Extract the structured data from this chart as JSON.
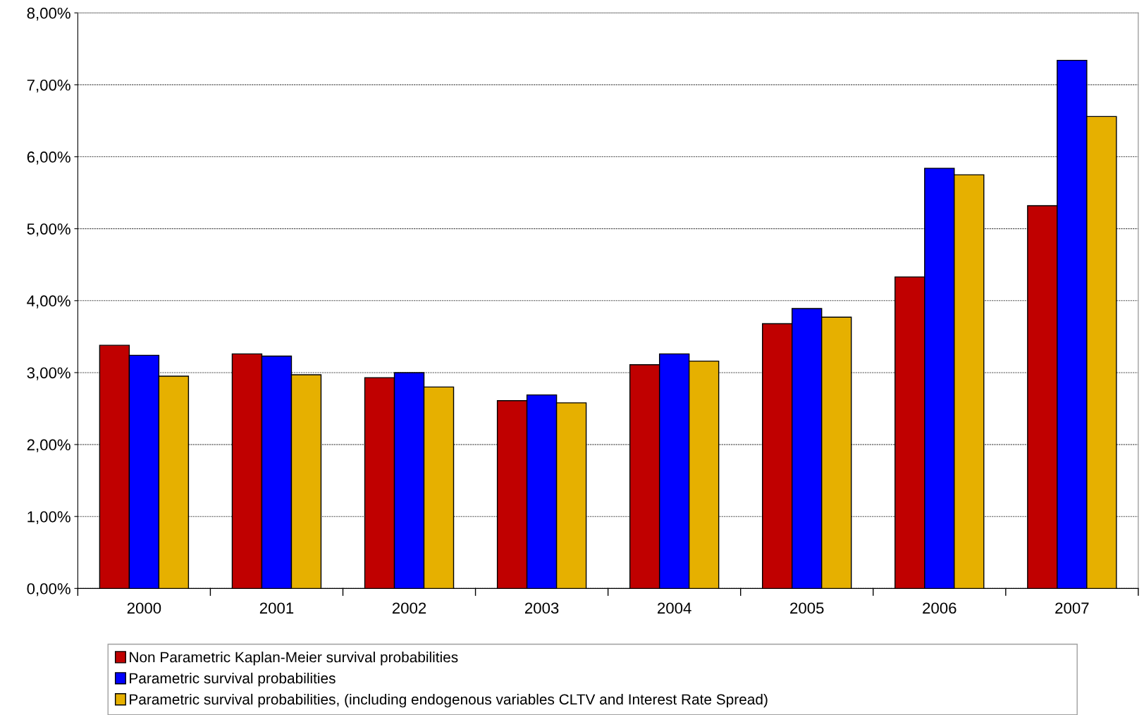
{
  "chart_data": {
    "type": "bar",
    "categories": [
      "2000",
      "2001",
      "2002",
      "2003",
      "2004",
      "2005",
      "2006",
      "2007"
    ],
    "series": [
      {
        "name": "Non Parametric Kaplan-Meier survival probabilities",
        "color": "#c00000",
        "values": [
          3.38,
          3.26,
          2.93,
          2.61,
          3.11,
          3.68,
          4.33,
          5.32
        ]
      },
      {
        "name": "Parametric survival probabilities",
        "color": "#0000ff",
        "values": [
          3.24,
          3.23,
          3.0,
          2.69,
          3.26,
          3.89,
          5.84,
          7.34
        ]
      },
      {
        "name": "Parametric survival probabilities, (including endogenous variables CLTV and Interest Rate Spread)",
        "color": "#e6b000",
        "values": [
          2.95,
          2.97,
          2.8,
          2.58,
          3.16,
          3.77,
          5.75,
          6.56
        ]
      }
    ],
    "ylim": [
      0,
      8
    ],
    "yticks": [
      {
        "value": 0,
        "label": "0,00%"
      },
      {
        "value": 1,
        "label": "1,00%"
      },
      {
        "value": 2,
        "label": "2,00%"
      },
      {
        "value": 3,
        "label": "3,00%"
      },
      {
        "value": 4,
        "label": "4,00%"
      },
      {
        "value": 5,
        "label": "5,00%"
      },
      {
        "value": 6,
        "label": "6,00%"
      },
      {
        "value": 7,
        "label": "7,00%"
      },
      {
        "value": 8,
        "label": "8,00%"
      }
    ],
    "grid": "y",
    "legend": "bottom"
  }
}
